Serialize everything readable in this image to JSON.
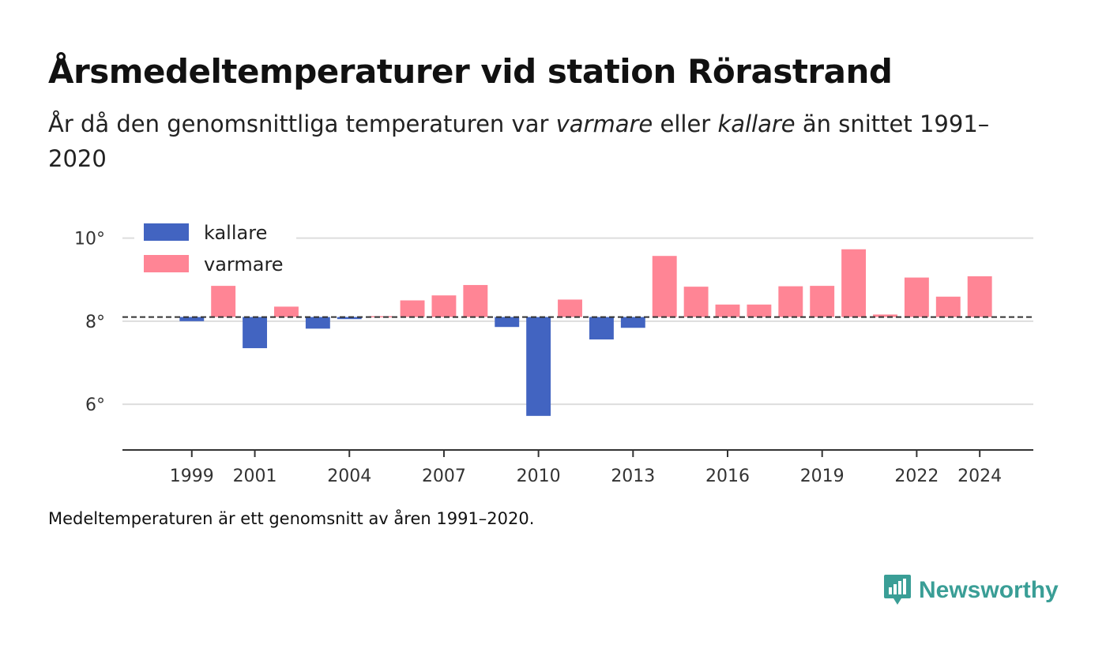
{
  "title": "Årsmedeltemperaturer vid station Rörastrand",
  "subtitle": {
    "part1": "År då den genomsnittliga temperaturen var ",
    "warm_word": "varmare",
    "part2": " eller ",
    "cold_word": "kallare",
    "part3": " än snittet 1991–2020"
  },
  "footnote": "Medeltemperaturen är ett genomsnitt av åren 1991–2020.",
  "brand": {
    "name": "Newsworthy",
    "icon": "newsworthy-logo-icon",
    "color": "#3a9e96"
  },
  "colors": {
    "kallare": "#4264c1",
    "varmare": "#ff8595",
    "grid": "#dddddd",
    "axis": "#333333"
  },
  "chart_data": {
    "type": "bar",
    "baseline": 8.1,
    "ylim": [
      4.9,
      10.6
    ],
    "y_ticks": [
      6,
      8,
      10
    ],
    "y_tick_labels": [
      "6°",
      "8°",
      "10°"
    ],
    "x_ticks": [
      1999,
      2001,
      2004,
      2007,
      2010,
      2013,
      2016,
      2019,
      2022,
      2024
    ],
    "x_tick_labels": [
      "1999",
      "2001",
      "2004",
      "2007",
      "2010",
      "2013",
      "2016",
      "2019",
      "2022",
      "2024"
    ],
    "xlim": [
      1996.8,
      2025.7
    ],
    "legend": [
      {
        "name": "kallare",
        "color": "#4264c1"
      },
      {
        "name": "varmare",
        "color": "#ff8595"
      }
    ],
    "legend_position": "top-left",
    "grid": true,
    "years": [
      1999,
      2000,
      2001,
      2002,
      2003,
      2004,
      2005,
      2006,
      2007,
      2008,
      2009,
      2010,
      2011,
      2012,
      2013,
      2014,
      2015,
      2016,
      2017,
      2018,
      2019,
      2020,
      2021,
      2022,
      2023,
      2024
    ],
    "values": [
      8.0,
      8.85,
      7.35,
      8.35,
      7.82,
      8.05,
      8.12,
      8.5,
      8.62,
      8.87,
      7.86,
      5.72,
      8.52,
      7.56,
      7.84,
      9.57,
      8.83,
      8.4,
      8.4,
      8.84,
      8.85,
      9.73,
      8.16,
      9.05,
      8.59,
      9.08
    ]
  }
}
